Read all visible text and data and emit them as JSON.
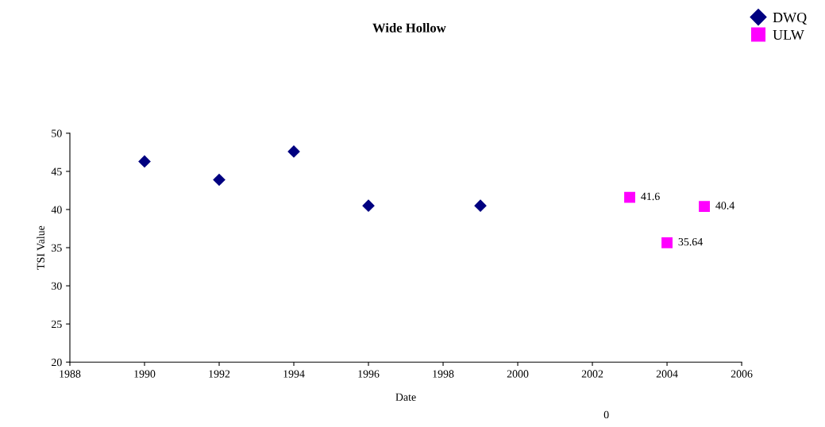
{
  "chart_data": {
    "type": "scatter",
    "title": "Wide Hollow",
    "xlabel": "Date",
    "ylabel": "TSI Value",
    "series": [
      {
        "name": "DWQ",
        "color": "#000080",
        "marker": "diamond",
        "x": [
          1990,
          1992,
          1994,
          1996,
          1999
        ],
        "values": [
          46.3,
          43.9,
          47.6,
          40.5,
          40.5
        ]
      },
      {
        "name": "ULW",
        "color": "#ff00ff",
        "marker": "square",
        "x": [
          2003,
          2004,
          2005
        ],
        "values": [
          41.6,
          35.64,
          40.4
        ],
        "value_labels": [
          "41.6",
          "35.64",
          "40.4"
        ]
      }
    ],
    "xlim": [
      1988,
      2006
    ],
    "xticks": [
      1988,
      1990,
      1992,
      1994,
      1996,
      1998,
      2000,
      2002,
      2004,
      2006
    ],
    "ylim": [
      20,
      50
    ],
    "yticks": [
      20,
      25,
      30,
      35,
      40,
      45,
      50
    ],
    "grid": false,
    "legend": "top right",
    "annotations": [
      "0"
    ]
  }
}
